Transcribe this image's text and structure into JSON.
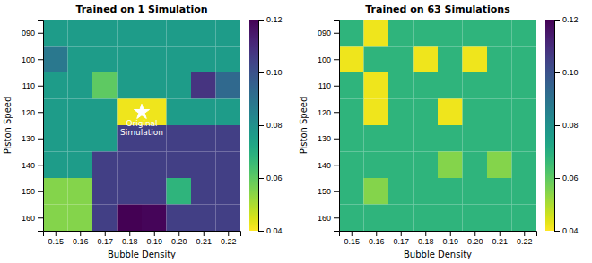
{
  "chart_data": [
    {
      "type": "heatmap",
      "title": "Trained on 1 Simulation",
      "x_label": "Bubble Density",
      "y_label": "Piston Speed",
      "x": [
        0.15,
        0.16,
        0.17,
        0.18,
        0.19,
        0.2,
        0.21,
        0.22
      ],
      "y": [
        90,
        100,
        110,
        120,
        130,
        140,
        150,
        160
      ],
      "values": [
        [
          0.076,
          0.076,
          0.076,
          0.076,
          0.076,
          0.076,
          0.076,
          0.076
        ],
        [
          0.088,
          0.076,
          0.076,
          0.076,
          0.076,
          0.076,
          0.076,
          0.076
        ],
        [
          0.076,
          0.076,
          0.06,
          0.076,
          0.076,
          0.076,
          0.108,
          0.093
        ],
        [
          0.076,
          0.076,
          0.076,
          0.042,
          0.042,
          0.076,
          0.076,
          0.076
        ],
        [
          0.076,
          0.076,
          0.076,
          0.105,
          0.105,
          0.105,
          0.105,
          0.105
        ],
        [
          0.076,
          0.076,
          0.105,
          0.105,
          0.105,
          0.105,
          0.105,
          0.105
        ],
        [
          0.055,
          0.055,
          0.105,
          0.105,
          0.105,
          0.068,
          0.105,
          0.105
        ],
        [
          0.055,
          0.055,
          0.105,
          0.12,
          0.119,
          0.105,
          0.105,
          0.105
        ]
      ],
      "xlim": [
        0.145,
        0.225
      ],
      "xticks": [
        0.15,
        0.16,
        0.17,
        0.18,
        0.19,
        {
          "value": 0.2,
          "label": "0.20"
        },
        0.21,
        0.22
      ],
      "ylim": [
        165,
        85
      ],
      "yticks": [
        {
          "value": 90,
          "label": "090"
        },
        100,
        110,
        120,
        130,
        140,
        150,
        160
      ],
      "color_range": [
        0.04,
        0.12
      ],
      "color_ticks": [
        0.04,
        0.06,
        0.08,
        {
          "value": 0.1,
          "label": "0.10"
        },
        0.12
      ],
      "grid": false,
      "annotations": [
        {
          "text": "Original\nSimulation",
          "x": 0.185,
          "y": 120,
          "marker": "star",
          "color": "white"
        }
      ]
    },
    {
      "type": "heatmap",
      "title": "Trained on 63 Simulations",
      "x_label": "Bubble Density",
      "y_label": "Piston Speed",
      "x": [
        0.15,
        0.16,
        0.17,
        0.18,
        0.19,
        0.2,
        0.21,
        0.22
      ],
      "y": [
        90,
        100,
        110,
        120,
        130,
        140,
        150,
        160
      ],
      "values": [
        [
          0.068,
          0.042,
          0.068,
          0.068,
          0.068,
          0.068,
          0.068,
          0.068
        ],
        [
          0.042,
          0.068,
          0.068,
          0.042,
          0.068,
          0.042,
          0.068,
          0.068
        ],
        [
          0.068,
          0.042,
          0.068,
          0.068,
          0.068,
          0.068,
          0.068,
          0.068
        ],
        [
          0.068,
          0.042,
          0.068,
          0.068,
          0.042,
          0.068,
          0.068,
          0.068
        ],
        [
          0.068,
          0.068,
          0.068,
          0.068,
          0.068,
          0.068,
          0.068,
          0.068
        ],
        [
          0.068,
          0.068,
          0.068,
          0.068,
          0.055,
          0.068,
          0.055,
          0.068
        ],
        [
          0.068,
          0.055,
          0.068,
          0.068,
          0.068,
          0.068,
          0.068,
          0.068
        ],
        [
          0.068,
          0.068,
          0.068,
          0.068,
          0.068,
          0.068,
          0.068,
          0.068
        ]
      ],
      "xlim": [
        0.145,
        0.225
      ],
      "xticks": [
        0.15,
        0.16,
        0.17,
        0.18,
        0.19,
        {
          "value": 0.2,
          "label": "0.20"
        },
        0.21,
        0.22
      ],
      "ylim": [
        165,
        85
      ],
      "yticks": [
        {
          "value": 90,
          "label": "090"
        },
        100,
        110,
        120,
        130,
        140,
        150,
        160
      ],
      "color_range": [
        0.04,
        0.12
      ],
      "color_ticks": [
        0.04,
        0.06,
        0.08,
        {
          "value": 0.1,
          "label": "0.10"
        },
        0.12
      ],
      "grid": false
    }
  ]
}
